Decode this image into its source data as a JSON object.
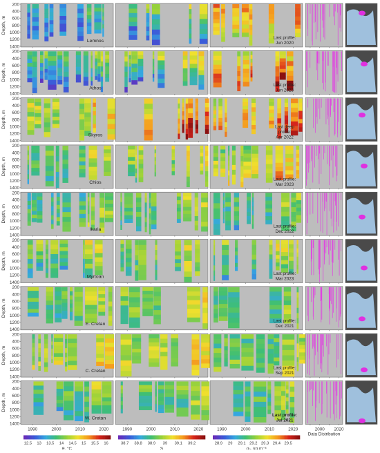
{
  "chart_data": {
    "type": "heatmap",
    "description_axes": {
      "ylabel": "Depth, m",
      "yticks": [
        200,
        400,
        600,
        800,
        1000,
        1200,
        1400
      ],
      "xticks": [
        1990,
        2000,
        2010,
        2020
      ],
      "xlim": [
        1985,
        2024
      ]
    },
    "rows": [
      {
        "basin": "Lemnos",
        "note": [
          "Last profile:",
          "Jun 2020"
        ],
        "bold": false
      },
      {
        "basin": "Athos",
        "note": [
          "Last profile:",
          "Jun 2023"
        ],
        "bold": false
      },
      {
        "basin": "Skyros",
        "note": [
          "Last deep",
          "profile:",
          "Apr 2022"
        ],
        "bold": false
      },
      {
        "basin": "Chios",
        "note": [
          "Last profile:",
          "Mar 2023"
        ],
        "bold": false
      },
      {
        "basin": "Ikaria",
        "note": [
          "Last profile:",
          "Dec 2022"
        ],
        "bold": false
      },
      {
        "basin": "Myrtoan",
        "note": [
          "Last profile:",
          "Mar 2023"
        ],
        "bold": false
      },
      {
        "basin": "E. Cretan",
        "note": [
          "Last profile:",
          "Dec 2021"
        ],
        "bold": false
      },
      {
        "basin": "C. Cretan",
        "note": [
          "Last profile:",
          "Sep 2021"
        ],
        "bold": false
      },
      {
        "basin": "W. Cretan",
        "note": [
          "Last profile:",
          "Jul 2021"
        ],
        "bold": true
      }
    ],
    "colorbars": [
      {
        "variable": "temperature",
        "label": "θ, °C",
        "ticks": [
          "12.5",
          "13",
          "13.5",
          "14",
          "14.5",
          "15",
          "15.5",
          "16"
        ],
        "range": [
          12.3,
          16.2
        ]
      },
      {
        "variable": "salinity",
        "label": "S",
        "ticks": [
          "38.7",
          "38.8",
          "38.9",
          "39",
          "39.1",
          "39.2"
        ],
        "range": [
          38.65,
          39.3
        ]
      },
      {
        "variable": "density",
        "label": "σ₀, kg m⁻³",
        "ticks": [
          "28.9",
          "29",
          "29.1",
          "29.2",
          "29.3",
          "29.4",
          "29.5"
        ],
        "range": [
          28.85,
          29.6
        ]
      }
    ],
    "data_distribution_label": "Data Distribution",
    "colormap": [
      "#6a2bb8",
      "#3b5bd9",
      "#35a8e0",
      "#3fbf74",
      "#9ad23a",
      "#f0e02e",
      "#f59a1e",
      "#d8261c",
      "#8a1010"
    ]
  },
  "colors": {
    "no_data": "#bdbdbd",
    "distribution": "#e040e0",
    "map_sea": "#9fc0dd",
    "map_land": "#4a4a4a",
    "highlight": "#e030e0"
  }
}
